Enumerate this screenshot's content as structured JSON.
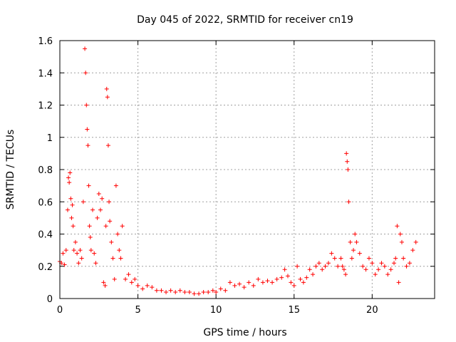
{
  "chart_data": {
    "type": "scatter",
    "title": "Day 045 of 2022, SRMTID for receiver cn19",
    "xlabel": "GPS time / hours",
    "ylabel": "SRMTID / TECUs",
    "xlim": [
      0,
      24
    ],
    "ylim": [
      0,
      1.6
    ],
    "xticks": [
      0,
      5,
      10,
      15,
      20
    ],
    "xtick_labels": [
      "0",
      "5",
      "10",
      "15",
      "20"
    ],
    "yticks": [
      0,
      0.2,
      0.4,
      0.6,
      0.8,
      1,
      1.2,
      1.4,
      1.6
    ],
    "ytick_labels": [
      "0",
      "0.2",
      "0.4",
      "0.6",
      "0.8",
      "1",
      "1.2",
      "1.4",
      "1.6"
    ],
    "grid": true,
    "marker": "plus",
    "color": "#ff0000",
    "series": [
      {
        "name": "SRMTID",
        "x": [
          0.0,
          0.1,
          0.2,
          0.3,
          0.4,
          0.5,
          0.55,
          0.6,
          0.65,
          0.7,
          0.75,
          0.8,
          0.85,
          0.9,
          1.0,
          1.1,
          1.2,
          1.3,
          1.4,
          1.5,
          1.6,
          1.65,
          1.7,
          1.75,
          1.8,
          1.85,
          1.9,
          1.95,
          2.0,
          2.1,
          2.2,
          2.3,
          2.4,
          2.5,
          2.6,
          2.7,
          2.8,
          2.9,
          2.95,
          3.0,
          3.05,
          3.1,
          3.15,
          3.2,
          3.3,
          3.4,
          3.5,
          3.6,
          3.7,
          3.8,
          3.9,
          4.0,
          4.2,
          4.4,
          4.6,
          4.8,
          5.0,
          5.3,
          5.6,
          5.9,
          6.2,
          6.5,
          6.8,
          7.1,
          7.4,
          7.7,
          8.0,
          8.3,
          8.6,
          8.9,
          9.2,
          9.5,
          9.8,
          10.0,
          10.3,
          10.6,
          10.9,
          11.2,
          11.5,
          11.8,
          12.1,
          12.4,
          12.7,
          13.0,
          13.3,
          13.6,
          13.9,
          14.2,
          14.4,
          14.6,
          14.8,
          15.0,
          15.2,
          15.4,
          15.6,
          15.8,
          16.0,
          16.2,
          16.4,
          16.6,
          16.8,
          17.0,
          17.2,
          17.4,
          17.6,
          17.8,
          18.0,
          18.1,
          18.2,
          18.3,
          18.35,
          18.4,
          18.45,
          18.5,
          18.6,
          18.7,
          18.8,
          18.9,
          19.0,
          19.2,
          19.4,
          19.6,
          19.8,
          20.0,
          20.2,
          20.4,
          20.6,
          20.8,
          21.0,
          21.2,
          21.4,
          21.5,
          21.6,
          21.7,
          21.8,
          21.9,
          22.0,
          22.2,
          22.4,
          22.6,
          22.8
        ],
        "y": [
          0.23,
          0.22,
          0.28,
          0.21,
          0.3,
          0.55,
          0.75,
          0.72,
          0.78,
          0.62,
          0.5,
          0.58,
          0.45,
          0.3,
          0.35,
          0.28,
          0.22,
          0.3,
          0.25,
          0.6,
          1.55,
          1.4,
          1.2,
          1.05,
          0.95,
          0.7,
          0.45,
          0.38,
          0.3,
          0.55,
          0.28,
          0.22,
          0.5,
          0.65,
          0.55,
          0.62,
          0.1,
          0.08,
          0.45,
          1.3,
          1.25,
          0.95,
          0.6,
          0.48,
          0.35,
          0.25,
          0.12,
          0.7,
          0.4,
          0.3,
          0.25,
          0.45,
          0.12,
          0.15,
          0.1,
          0.12,
          0.08,
          0.06,
          0.08,
          0.07,
          0.05,
          0.05,
          0.04,
          0.05,
          0.04,
          0.05,
          0.04,
          0.04,
          0.03,
          0.03,
          0.04,
          0.04,
          0.05,
          0.04,
          0.06,
          0.05,
          0.1,
          0.08,
          0.09,
          0.07,
          0.1,
          0.08,
          0.12,
          0.1,
          0.11,
          0.1,
          0.12,
          0.13,
          0.18,
          0.14,
          0.1,
          0.08,
          0.2,
          0.12,
          0.1,
          0.13,
          0.18,
          0.15,
          0.2,
          0.22,
          0.18,
          0.2,
          0.22,
          0.28,
          0.25,
          0.2,
          0.25,
          0.2,
          0.18,
          0.15,
          0.9,
          0.85,
          0.8,
          0.6,
          0.35,
          0.25,
          0.3,
          0.4,
          0.35,
          0.28,
          0.2,
          0.18,
          0.25,
          0.22,
          0.15,
          0.18,
          0.22,
          0.2,
          0.15,
          0.18,
          0.22,
          0.25,
          0.45,
          0.1,
          0.4,
          0.35,
          0.25,
          0.2,
          0.22,
          0.3,
          0.35
        ]
      }
    ]
  }
}
